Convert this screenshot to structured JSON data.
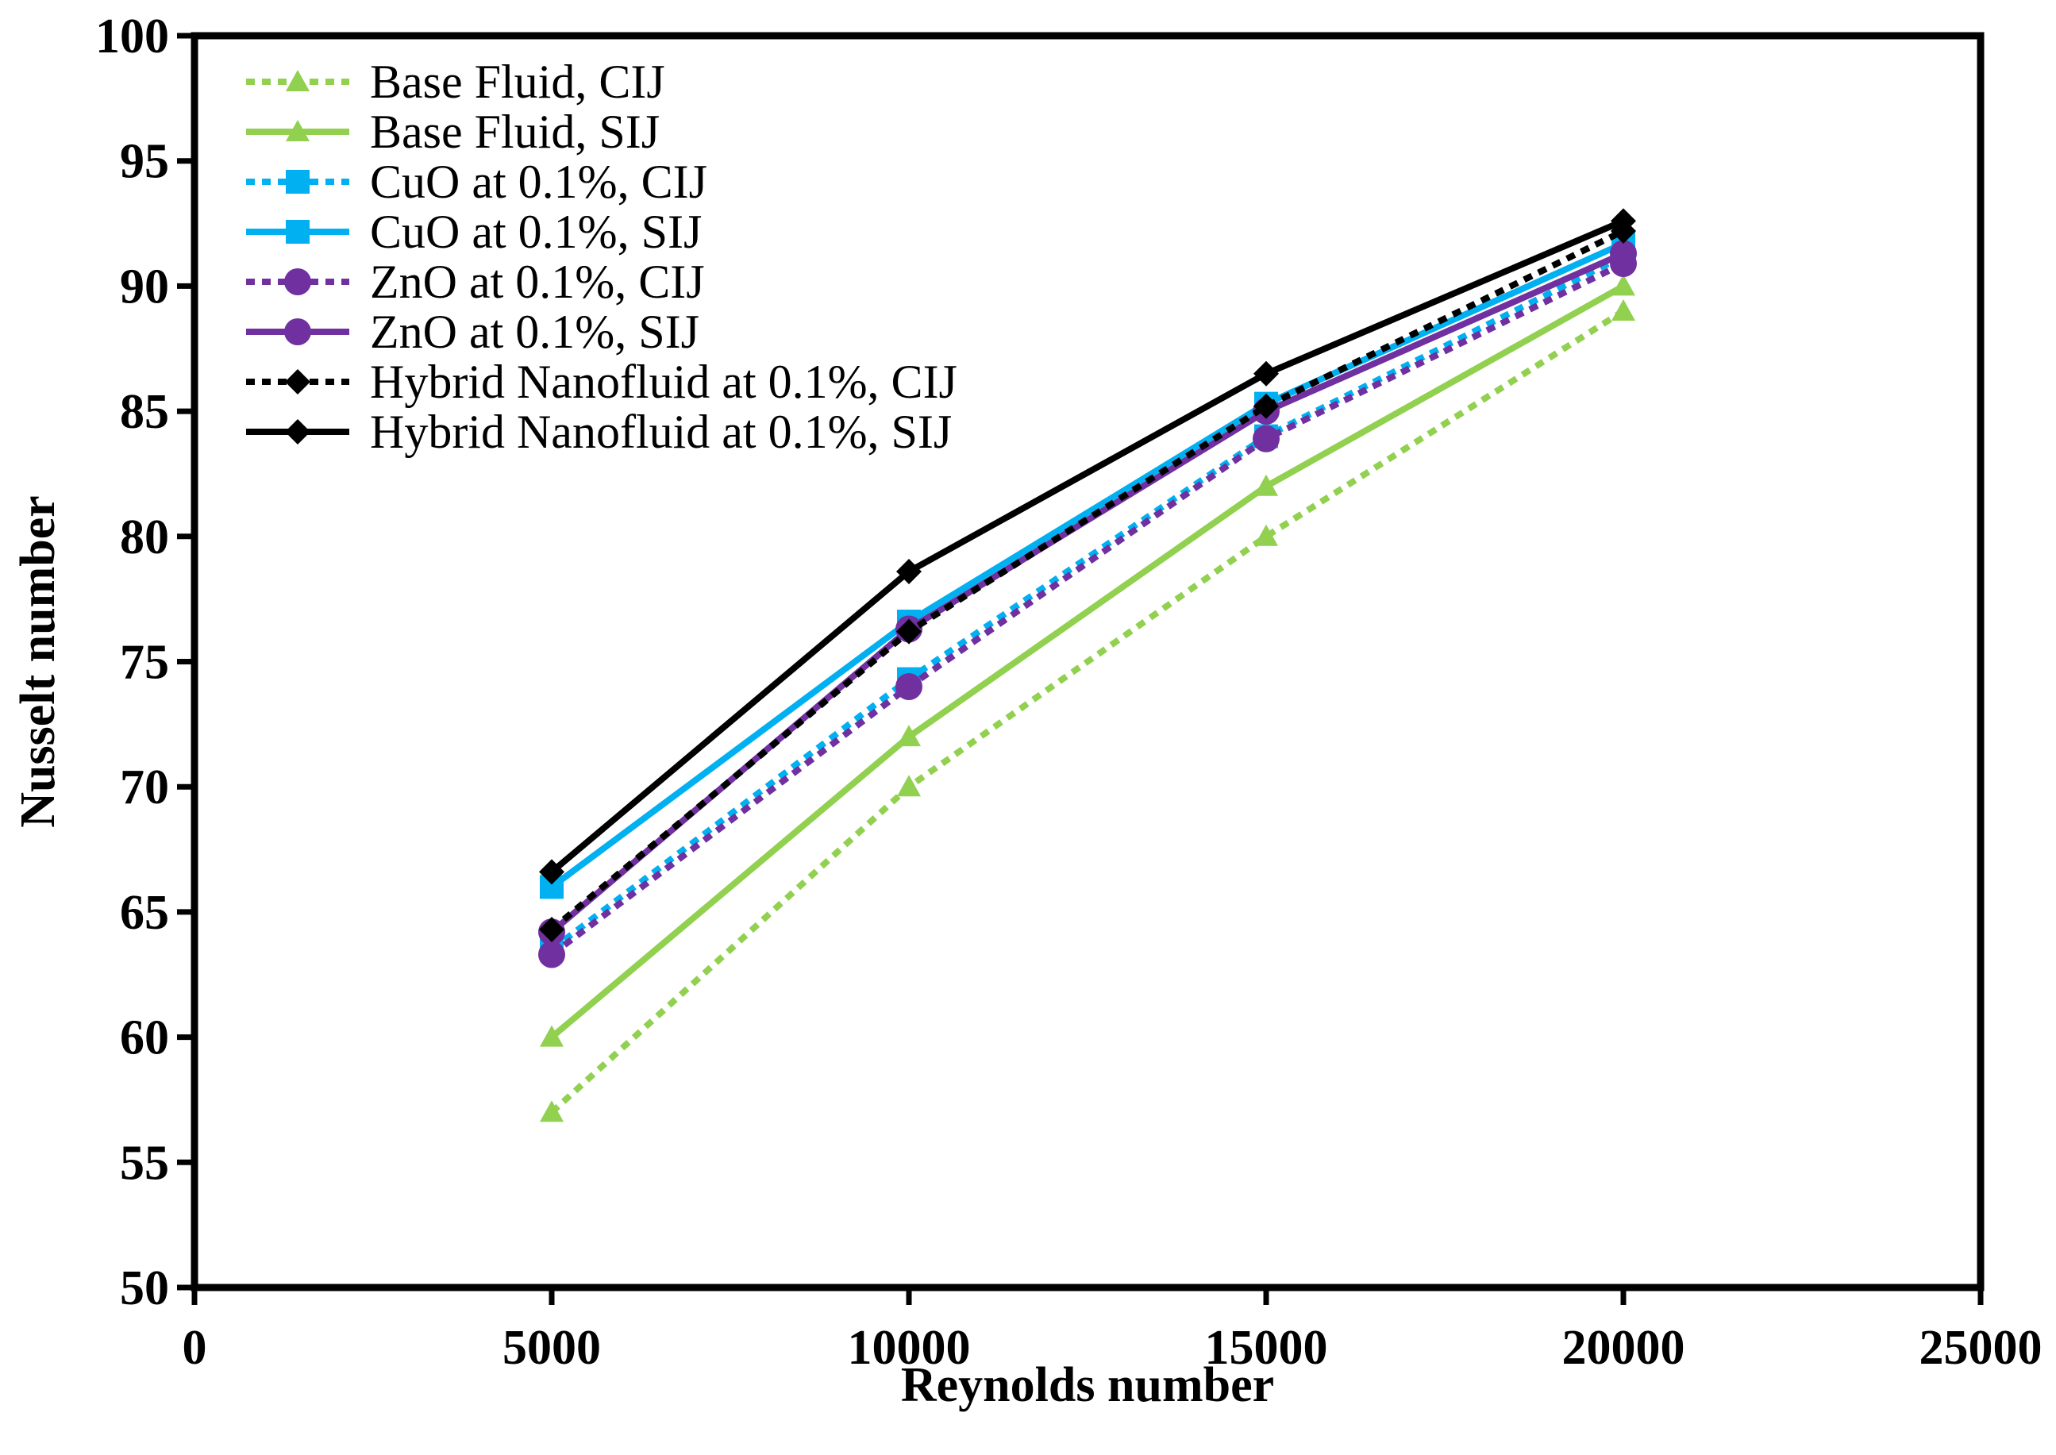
{
  "chart_data": {
    "type": "line",
    "title": "",
    "xlabel": "Reynolds number",
    "ylabel": "Nusselt number",
    "xlim": [
      0,
      25000
    ],
    "ylim": [
      50,
      100
    ],
    "xticks": [
      0,
      5000,
      10000,
      15000,
      20000,
      25000
    ],
    "yticks": [
      50,
      55,
      60,
      65,
      70,
      75,
      80,
      85,
      90,
      95,
      100
    ],
    "grid": false,
    "legend_position": "top-left",
    "x": [
      5000,
      10000,
      15000,
      20000
    ],
    "series": [
      {
        "name": "Base Fluid, CIJ",
        "values": [
          57.0,
          70.0,
          80.0,
          89.0
        ],
        "color": "#92D050",
        "dash": "dotted",
        "marker": "triangle"
      },
      {
        "name": "Base Fluid, SIJ",
        "values": [
          60.0,
          72.0,
          82.0,
          90.0
        ],
        "color": "#92D050",
        "dash": "solid",
        "marker": "triangle"
      },
      {
        "name": "CuO at 0.1%, CIJ",
        "values": [
          63.5,
          74.3,
          84.0,
          91.2
        ],
        "color": "#00B0F0",
        "dash": "dotted",
        "marker": "square"
      },
      {
        "name": "CuO at 0.1%, SIJ",
        "values": [
          66.0,
          76.6,
          85.3,
          91.7
        ],
        "color": "#00B0F0",
        "dash": "solid",
        "marker": "square"
      },
      {
        "name": "ZnO at 0.1%, CIJ",
        "values": [
          63.3,
          74.0,
          83.9,
          90.9
        ],
        "color": "#7030A0",
        "dash": "dotted",
        "marker": "circle"
      },
      {
        "name": "ZnO at 0.1%, SIJ",
        "values": [
          64.2,
          76.3,
          85.0,
          91.3
        ],
        "color": "#7030A0",
        "dash": "solid",
        "marker": "circle"
      },
      {
        "name": "Hybrid Nanofluid at 0.1%, CIJ",
        "values": [
          64.3,
          76.2,
          85.2,
          92.2
        ],
        "color": "#000000",
        "dash": "dotted",
        "marker": "diamond"
      },
      {
        "name": "Hybrid Nanofluid at 0.1%, SIJ",
        "values": [
          66.6,
          78.6,
          86.5,
          92.6
        ],
        "color": "#000000",
        "dash": "solid",
        "marker": "diamond"
      }
    ]
  }
}
